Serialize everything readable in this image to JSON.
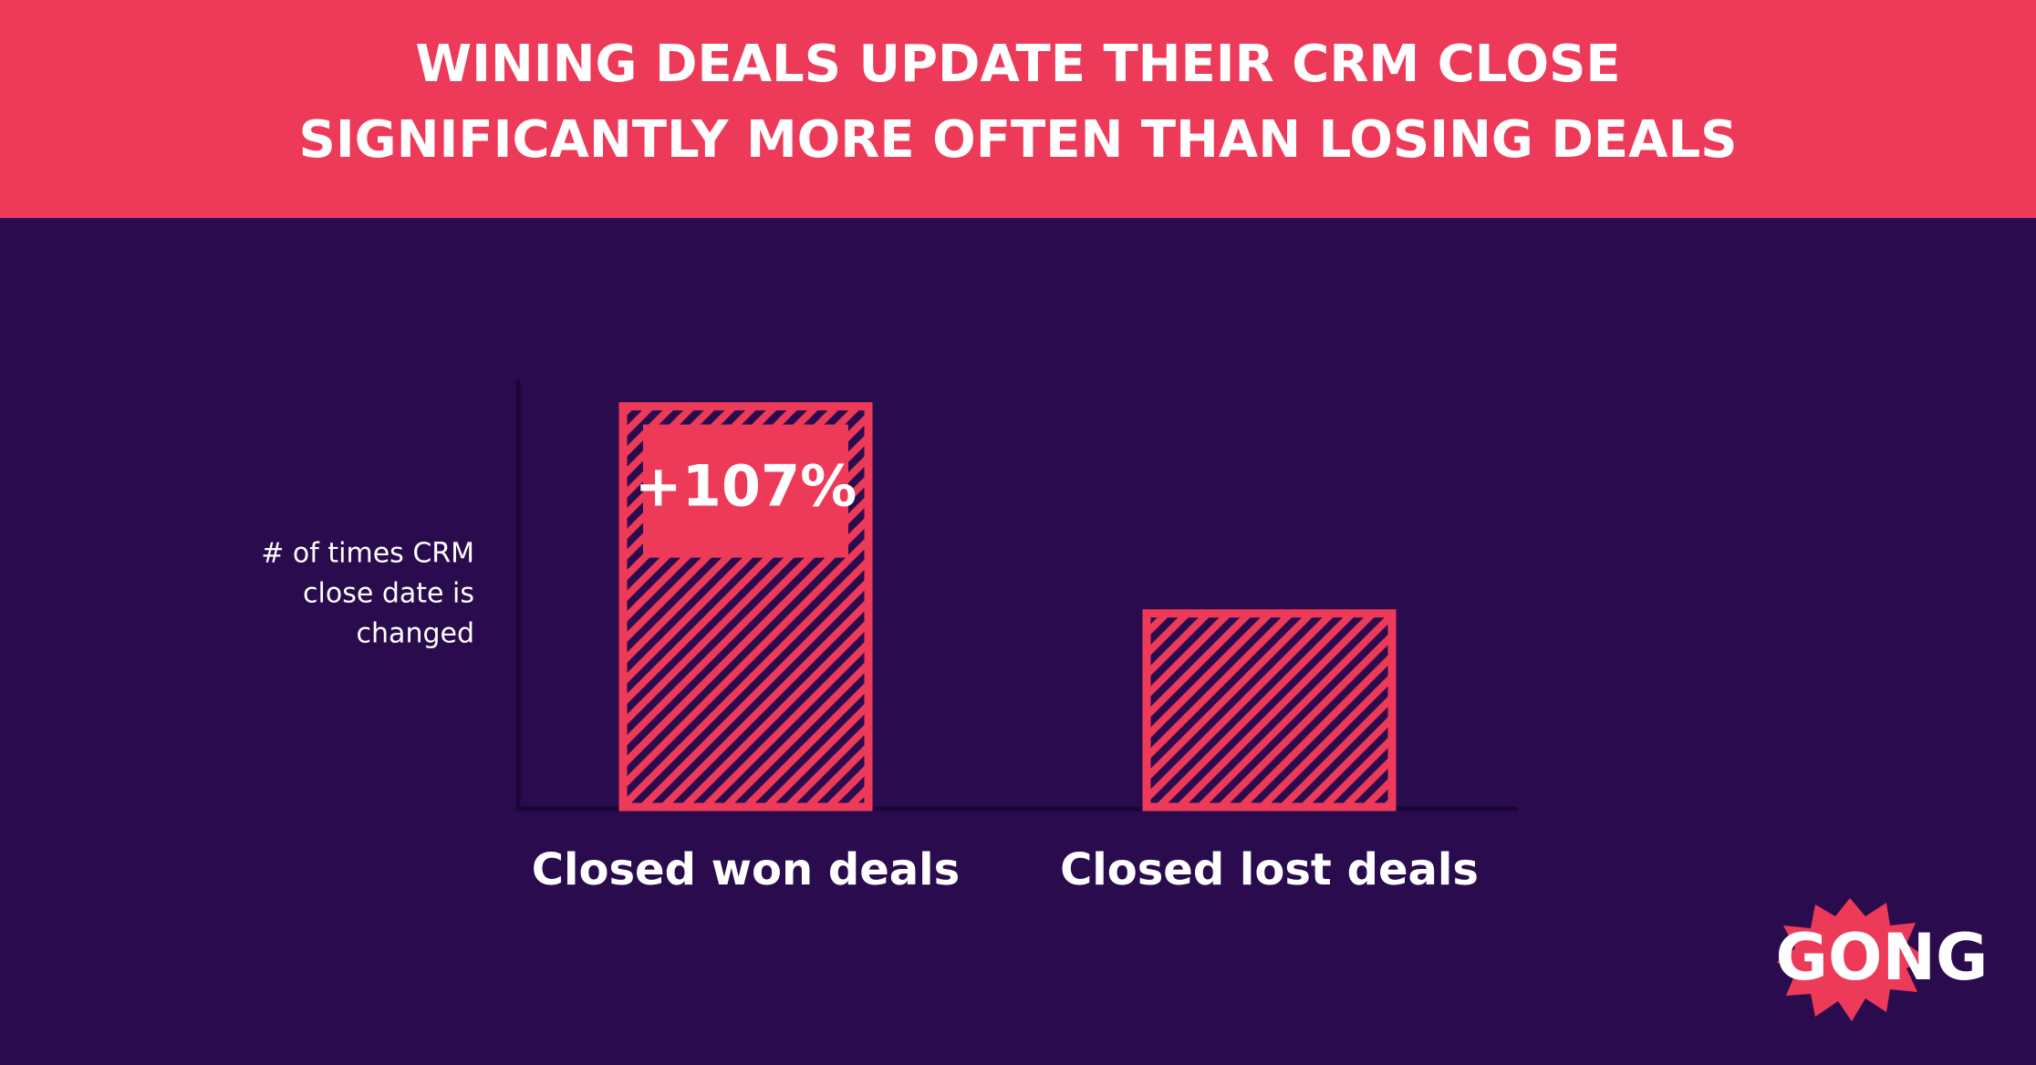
{
  "chart_data": {
    "type": "bar",
    "title": [
      "WINING DEALS UPDATE THEIR CRM CLOSE",
      "SIGNIFICANTLY MORE OFTEN THAN LOSING DEALS"
    ],
    "y_label": [
      "# of times CRM",
      "close date is",
      "changed"
    ],
    "categories": [
      "Closed won deals",
      "Closed lost deals"
    ],
    "values": [
      207,
      100
    ],
    "color": "#ee3a59",
    "ylim": [
      0,
      220
    ],
    "annotation": "+107%",
    "logo": "GONG"
  }
}
